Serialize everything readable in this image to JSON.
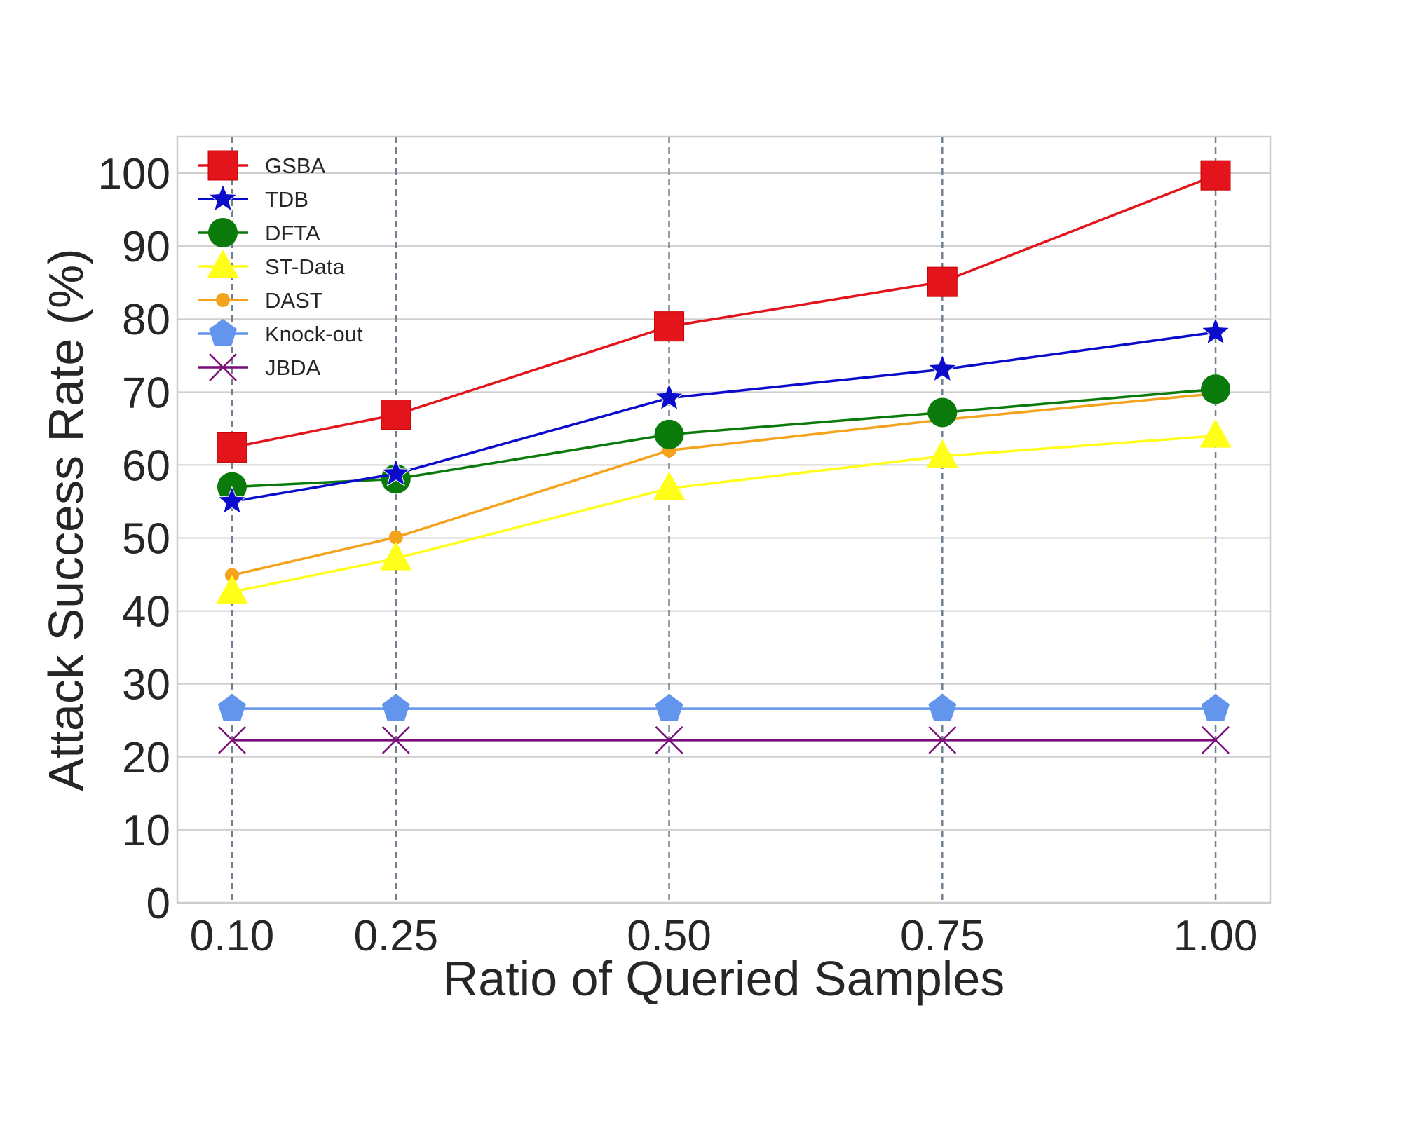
{
  "chart_data": {
    "type": "line",
    "title": "",
    "xlabel": "Ratio of Queried Samples",
    "ylabel": "Attack Success Rate (%)",
    "x": [
      0.1,
      0.25,
      0.5,
      0.75,
      1.0
    ],
    "x_tick_labels": [
      "0.10",
      "0.25",
      "0.50",
      "0.75",
      "1.00"
    ],
    "y_ticks": [
      0,
      10,
      20,
      30,
      40,
      50,
      60,
      70,
      80,
      90,
      100
    ],
    "y_tick_labels": [
      "0",
      "10",
      "20",
      "30",
      "40",
      "50",
      "60",
      "70",
      "80",
      "90",
      "100"
    ],
    "xlim": [
      0.05,
      1.05
    ],
    "ylim": [
      0,
      105
    ],
    "grid": "horizontal solid, vertical dashed at x ticks",
    "legend_position": "upper-left",
    "series": [
      {
        "name": "GSBA",
        "color": "#e3141c",
        "marker": "square",
        "values": [
          62.4,
          66.9,
          79.0,
          85.1,
          99.7
        ]
      },
      {
        "name": "TDB",
        "color": "#0b0bcc",
        "marker": "star",
        "values": [
          55.0,
          58.8,
          69.2,
          73.1,
          78.2
        ]
      },
      {
        "name": "DFTA",
        "color": "#0a7a0a",
        "marker": "circle",
        "values": [
          57.0,
          58.1,
          64.2,
          67.2,
          70.4
        ]
      },
      {
        "name": "ST-Data",
        "color": "#ffff1a",
        "marker": "triangle",
        "values": [
          42.6,
          47.2,
          56.8,
          61.2,
          64.0
        ]
      },
      {
        "name": "DAST",
        "color": "#f5a21c",
        "marker": "small-circle",
        "values": [
          44.9,
          50.1,
          62.0,
          66.2,
          69.8
        ]
      },
      {
        "name": "Knock-out",
        "color": "#6495ed",
        "marker": "pentagon",
        "values": [
          26.6,
          26.6,
          26.6,
          26.6,
          26.6
        ]
      },
      {
        "name": "JBDA",
        "color": "#7a0f7a",
        "marker": "x",
        "values": [
          22.3,
          22.3,
          22.3,
          22.3,
          22.3
        ]
      }
    ]
  }
}
